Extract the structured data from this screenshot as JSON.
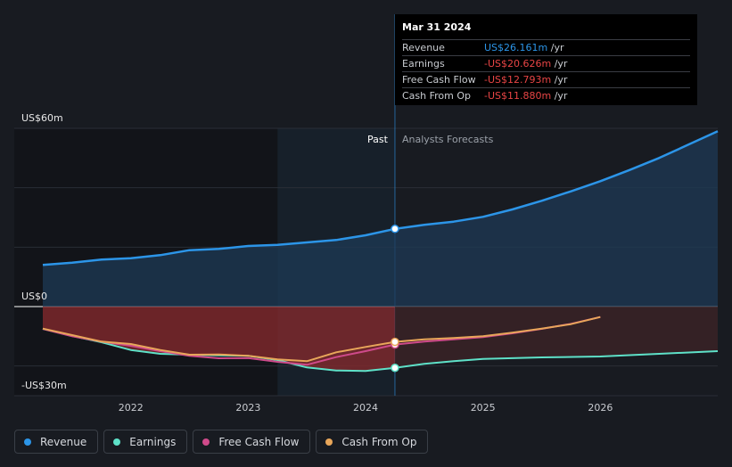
{
  "chart_data": {
    "type": "line",
    "title": "",
    "xlabel": "",
    "ylabel": "",
    "x_ticks": [
      2022,
      2023,
      2024,
      2025,
      2026
    ],
    "y_ticks": [
      {
        "value": 60,
        "label": "US$60m"
      },
      {
        "value": 0,
        "label": "US$0"
      },
      {
        "value": -30,
        "label": "-US$30m"
      }
    ],
    "xlim": [
      2021.25,
      2027.0
    ],
    "ylim": [
      -30,
      60
    ],
    "gridlines": [
      60,
      40,
      20,
      0,
      -20
    ],
    "split_x": 2024.25,
    "past_band_start": 2023.25,
    "past_label": "Past",
    "forecast_label": "Analysts Forecasts",
    "series": [
      {
        "name": "Revenue",
        "color": "#2c95e8",
        "fill": "#1f3f5e",
        "x": [
          2021.25,
          2021.5,
          2021.75,
          2022.0,
          2022.25,
          2022.5,
          2022.75,
          2023.0,
          2023.25,
          2023.5,
          2023.75,
          2024.0,
          2024.25,
          2024.5,
          2024.75,
          2025.0,
          2025.25,
          2025.5,
          2025.75,
          2026.0,
          2026.25,
          2026.5,
          2026.75,
          2027.0
        ],
        "values": [
          14.0,
          14.8,
          15.8,
          16.3,
          17.3,
          19.0,
          19.4,
          20.4,
          20.8,
          21.6,
          22.4,
          24.0,
          26.161,
          27.5,
          28.6,
          30.2,
          32.7,
          35.6,
          38.8,
          42.2,
          46.0,
          50.0,
          54.5,
          59.0
        ]
      },
      {
        "name": "Earnings",
        "color": "#5ee1c8",
        "x": [
          2021.25,
          2021.5,
          2021.75,
          2022.0,
          2022.25,
          2022.5,
          2022.75,
          2023.0,
          2023.25,
          2023.5,
          2023.75,
          2024.0,
          2024.25,
          2024.5,
          2024.75,
          2025.0,
          2025.5,
          2026.0,
          2026.5,
          2027.0
        ],
        "values": [
          -7.5,
          -9.9,
          -12.0,
          -14.6,
          -15.9,
          -16.2,
          -16.4,
          -16.6,
          -18.0,
          -20.5,
          -21.5,
          -21.7,
          -20.626,
          -19.3,
          -18.4,
          -17.6,
          -17.1,
          -16.8,
          -15.9,
          -15.0
        ]
      },
      {
        "name": "Free Cash Flow",
        "color": "#cf4a8a",
        "x": [
          2021.25,
          2021.5,
          2021.75,
          2022.0,
          2022.25,
          2022.5,
          2022.75,
          2023.0,
          2023.25,
          2023.5,
          2023.75,
          2024.0,
          2024.25,
          2024.5,
          2024.75,
          2025.0,
          2025.25,
          2025.5,
          2025.75,
          2026.0
        ],
        "values": [
          -7.5,
          -10.0,
          -11.8,
          -13.2,
          -15.0,
          -16.6,
          -17.4,
          -17.3,
          -18.6,
          -19.6,
          -17.0,
          -15.0,
          -12.793,
          -11.8,
          -11.0,
          -10.3,
          -9.0,
          -7.5,
          -5.8,
          -3.5
        ]
      },
      {
        "name": "Cash From Op",
        "color": "#e8a65a",
        "x": [
          2021.25,
          2021.5,
          2021.75,
          2022.0,
          2022.25,
          2022.5,
          2022.75,
          2023.0,
          2023.25,
          2023.5,
          2023.75,
          2024.0,
          2024.25,
          2024.5,
          2024.75,
          2025.0,
          2025.25,
          2025.5,
          2025.75,
          2026.0
        ],
        "values": [
          -7.4,
          -9.6,
          -11.8,
          -12.6,
          -14.6,
          -16.2,
          -16.1,
          -16.6,
          -17.8,
          -18.4,
          -15.4,
          -13.6,
          -11.88,
          -11.0,
          -10.6,
          -10.0,
          -8.8,
          -7.4,
          -5.9,
          -3.5
        ]
      }
    ],
    "highlight_x": 2024.25
  },
  "tooltip": {
    "date": "Mar 31 2024",
    "unit": " /yr",
    "rows": [
      {
        "label": "Revenue",
        "value": "US$26.161m",
        "color": "#2c95e8"
      },
      {
        "label": "Earnings",
        "value": "-US$20.626m",
        "color": "#e84545"
      },
      {
        "label": "Free Cash Flow",
        "value": "-US$12.793m",
        "color": "#e84545"
      },
      {
        "label": "Cash From Op",
        "value": "-US$11.880m",
        "color": "#e84545"
      }
    ]
  },
  "legend": [
    {
      "label": "Revenue",
      "color": "#2c95e8"
    },
    {
      "label": "Earnings",
      "color": "#5ee1c8"
    },
    {
      "label": "Free Cash Flow",
      "color": "#cf4a8a"
    },
    {
      "label": "Cash From Op",
      "color": "#e8a65a"
    }
  ]
}
